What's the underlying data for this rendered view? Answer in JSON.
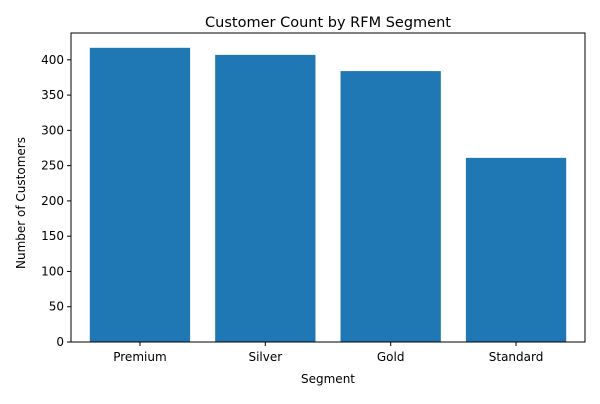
{
  "chart_data": {
    "type": "bar",
    "title": "Customer Count by RFM Segment",
    "xlabel": "Segment",
    "ylabel": "Number of Customers",
    "categories": [
      "Premium",
      "Silver",
      "Gold",
      "Standard"
    ],
    "values": [
      417,
      407,
      384,
      261
    ],
    "ylim": [
      0,
      438
    ],
    "yticks": [
      0,
      50,
      100,
      150,
      200,
      250,
      300,
      350,
      400
    ],
    "grid": false,
    "bar_color": "#1f77b4"
  }
}
